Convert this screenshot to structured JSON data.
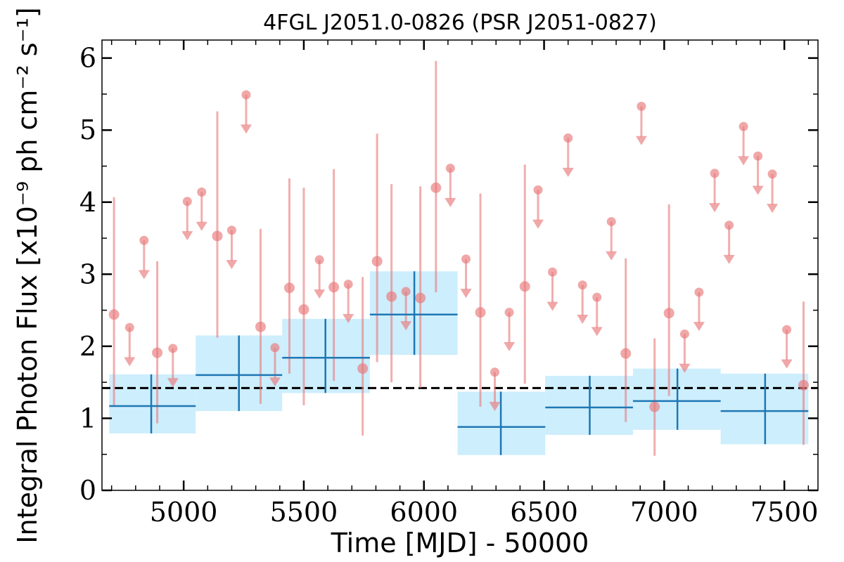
{
  "chart_data": {
    "type": "scatter",
    "title": "4FGL J2051.0-0826 (PSR J2051-0827)",
    "xlabel": "Time [MJD] - 50000",
    "ylabel": "Integral Photon Flux [x10⁻⁹ ph cm⁻² s⁻¹]",
    "xlim": [
      4660,
      7640
    ],
    "ylim": [
      0,
      6.25
    ],
    "xticks": [
      5000,
      5500,
      6000,
      6500,
      7000,
      7500
    ],
    "xtick_labels": [
      "5000",
      "5500",
      "6000",
      "6500",
      "7000",
      "7500"
    ],
    "yticks": [
      0,
      1,
      2,
      3,
      4,
      5,
      6
    ],
    "ytick_labels": [
      "0",
      "1",
      "2",
      "3",
      "4",
      "5",
      "6"
    ],
    "grid": false,
    "mean_flux": 1.42,
    "colors": {
      "points": "#e8787a",
      "bins": "#1f77b4",
      "bin_fill": "#cdeefc",
      "mean_line": "#000000"
    },
    "series": [
      {
        "kind": "binned_flux",
        "points": [
          {
            "x": 4865,
            "xlo": 4690,
            "xhi": 5050,
            "y": 1.17,
            "ylo": 0.79,
            "yhi": 1.61
          },
          {
            "x": 5230,
            "xlo": 5050,
            "xhi": 5410,
            "y": 1.6,
            "ylo": 1.1,
            "yhi": 2.15
          },
          {
            "x": 5590,
            "xlo": 5410,
            "xhi": 5775,
            "y": 1.84,
            "ylo": 1.35,
            "yhi": 2.38
          },
          {
            "x": 5960,
            "xlo": 5775,
            "xhi": 6140,
            "y": 2.44,
            "ylo": 1.88,
            "yhi": 3.04
          },
          {
            "x": 6320,
            "xlo": 6140,
            "xhi": 6505,
            "y": 0.88,
            "ylo": 0.49,
            "yhi": 1.37
          },
          {
            "x": 6690,
            "xlo": 6505,
            "xhi": 6870,
            "y": 1.15,
            "ylo": 0.77,
            "yhi": 1.59
          },
          {
            "x": 7055,
            "xlo": 6870,
            "xhi": 7235,
            "y": 1.24,
            "ylo": 0.84,
            "yhi": 1.69
          },
          {
            "x": 7420,
            "xlo": 7235,
            "xhi": 7600,
            "y": 1.1,
            "ylo": 0.64,
            "yhi": 1.62
          }
        ]
      },
      {
        "kind": "short_bin_detections",
        "points": [
          {
            "x": 4710,
            "y": 2.44,
            "ylo": 1.18,
            "yhi": 4.07
          },
          {
            "x": 4890,
            "y": 1.91,
            "ylo": 0.93,
            "yhi": 3.18
          },
          {
            "x": 5140,
            "y": 3.53,
            "ylo": 2.12,
            "yhi": 5.26
          },
          {
            "x": 5320,
            "y": 2.27,
            "ylo": 1.2,
            "yhi": 3.63
          },
          {
            "x": 5440,
            "y": 2.81,
            "ylo": 1.62,
            "yhi": 4.33
          },
          {
            "x": 5500,
            "y": 2.51,
            "ylo": 1.18,
            "yhi": 4.2
          },
          {
            "x": 5625,
            "y": 2.82,
            "ylo": 1.52,
            "yhi": 4.46
          },
          {
            "x": 5745,
            "y": 1.69,
            "ylo": 0.76,
            "yhi": 2.96
          },
          {
            "x": 5805,
            "y": 3.18,
            "ylo": 1.78,
            "yhi": 4.95
          },
          {
            "x": 5865,
            "y": 2.69,
            "ylo": 1.5,
            "yhi": 4.25
          },
          {
            "x": 5985,
            "y": 2.67,
            "ylo": 1.42,
            "yhi": 4.22
          },
          {
            "x": 6050,
            "y": 4.2,
            "ylo": 2.75,
            "yhi": 5.96
          },
          {
            "x": 6235,
            "y": 2.47,
            "ylo": 1.16,
            "yhi": 4.12
          },
          {
            "x": 6420,
            "y": 2.83,
            "ylo": 1.48,
            "yhi": 4.52
          },
          {
            "x": 6840,
            "y": 1.9,
            "ylo": 0.95,
            "yhi": 3.22
          },
          {
            "x": 6960,
            "y": 1.16,
            "ylo": 0.48,
            "yhi": 2.11
          },
          {
            "x": 7020,
            "y": 2.46,
            "ylo": 1.31,
            "yhi": 3.97
          },
          {
            "x": 7580,
            "y": 1.46,
            "ylo": 0.63,
            "yhi": 2.62
          }
        ]
      },
      {
        "kind": "short_bin_upper_limits",
        "points": [
          {
            "x": 4775,
            "y": 2.26
          },
          {
            "x": 4835,
            "y": 3.47
          },
          {
            "x": 4955,
            "y": 1.97
          },
          {
            "x": 5015,
            "y": 4.01
          },
          {
            "x": 5075,
            "y": 4.14
          },
          {
            "x": 5200,
            "y": 3.61
          },
          {
            "x": 5260,
            "y": 5.49
          },
          {
            "x": 5380,
            "y": 1.98
          },
          {
            "x": 5565,
            "y": 3.2
          },
          {
            "x": 5685,
            "y": 2.86
          },
          {
            "x": 5925,
            "y": 2.76
          },
          {
            "x": 6110,
            "y": 4.47
          },
          {
            "x": 6175,
            "y": 3.21
          },
          {
            "x": 6295,
            "y": 1.64
          },
          {
            "x": 6355,
            "y": 2.47
          },
          {
            "x": 6475,
            "y": 4.17
          },
          {
            "x": 6535,
            "y": 3.03
          },
          {
            "x": 6600,
            "y": 4.89
          },
          {
            "x": 6660,
            "y": 2.85
          },
          {
            "x": 6720,
            "y": 2.68
          },
          {
            "x": 6780,
            "y": 3.73
          },
          {
            "x": 6905,
            "y": 5.33
          },
          {
            "x": 7085,
            "y": 2.17
          },
          {
            "x": 7145,
            "y": 2.75
          },
          {
            "x": 7210,
            "y": 4.4
          },
          {
            "x": 7270,
            "y": 3.68
          },
          {
            "x": 7330,
            "y": 5.05
          },
          {
            "x": 7390,
            "y": 4.64
          },
          {
            "x": 7450,
            "y": 4.39
          },
          {
            "x": 7510,
            "y": 2.23
          }
        ]
      }
    ]
  }
}
